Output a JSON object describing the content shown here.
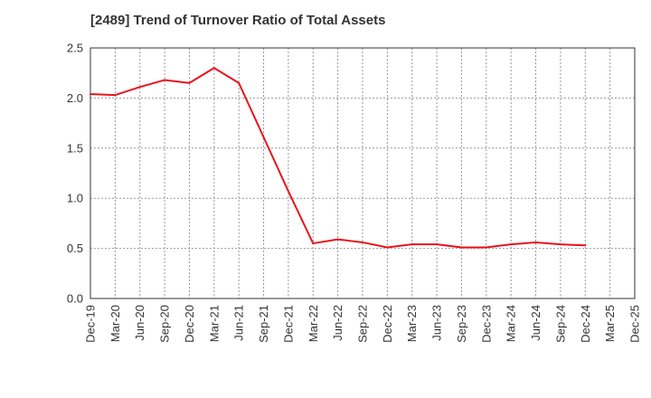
{
  "chart_data": {
    "type": "line",
    "title": "[2489]  Trend of Turnover Ratio of Total Assets",
    "xlabel": "",
    "ylabel": "",
    "ylim": [
      0,
      2.5
    ],
    "yticks": [
      "0.0",
      "0.5",
      "1.0",
      "1.5",
      "2.0",
      "2.5"
    ],
    "xtick_labels": [
      "Dec-19",
      "Mar-20",
      "Jun-20",
      "Sep-20",
      "Dec-20",
      "Mar-21",
      "Jun-21",
      "Sep-21",
      "Dec-21",
      "Mar-22",
      "Jun-22",
      "Sep-22",
      "Dec-22",
      "Mar-23",
      "Jun-23",
      "Sep-23",
      "Dec-23",
      "Mar-24",
      "Jun-24",
      "Sep-24",
      "Dec-24",
      "Mar-25",
      "Dec-25"
    ],
    "grid": true,
    "colors": {
      "line": "#e8141c",
      "grid": "#999999",
      "axis": "#333333",
      "text": "#333333"
    },
    "series": [
      {
        "x": [
          "Dec-19",
          "Mar-20",
          "Jun-20",
          "Sep-20",
          "Dec-20",
          "Mar-21",
          "Jun-21",
          "Sep-21",
          "Dec-21",
          "Mar-22",
          "Jun-22",
          "Sep-22",
          "Dec-22",
          "Mar-23",
          "Jun-23",
          "Sep-23",
          "Dec-23",
          "Mar-24",
          "Jun-24",
          "Sep-24",
          "Dec-24"
        ],
        "values": [
          2.04,
          2.03,
          2.11,
          2.18,
          2.15,
          2.3,
          2.15,
          1.61,
          1.07,
          0.55,
          0.59,
          0.56,
          0.51,
          0.54,
          0.54,
          0.51,
          0.51,
          0.54,
          0.56,
          0.54,
          0.53
        ]
      }
    ]
  }
}
